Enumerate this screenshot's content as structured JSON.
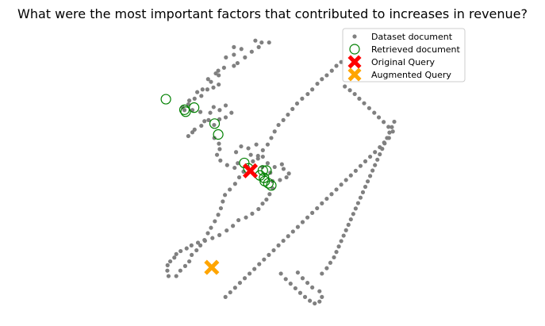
{
  "chart_data": {
    "type": "scatter",
    "title": "What were the most important factors that contributed to increases in revenue?",
    "xlim": [
      0,
      1
    ],
    "ylim": [
      0,
      1
    ],
    "grid": false,
    "axes_visible": false,
    "legend_position": "top-right",
    "legend": [
      {
        "label": "Dataset document",
        "marker": "dot",
        "color": "#808080"
      },
      {
        "label": "Retrieved document",
        "marker": "hollow-circle",
        "color": "#008000"
      },
      {
        "label": "Original Query",
        "marker": "x",
        "color": "#ff0000"
      },
      {
        "label": "Augmented Query",
        "marker": "x",
        "color": "#ffa500"
      }
    ],
    "series": [
      {
        "name": "Dataset document",
        "color": "#808080",
        "points": [
          [
            0.424,
            0.979
          ],
          [
            0.45,
            0.972
          ],
          [
            0.481,
            0.972
          ],
          [
            0.438,
            0.955
          ],
          [
            0.335,
            0.955
          ],
          [
            0.366,
            0.948
          ],
          [
            0.409,
            0.938
          ],
          [
            0.335,
            0.927
          ],
          [
            0.302,
            0.917
          ],
          [
            0.381,
            0.917
          ],
          [
            0.35,
            0.896
          ],
          [
            0.335,
            0.886
          ],
          [
            0.294,
            0.879
          ],
          [
            0.27,
            0.868
          ],
          [
            0.26,
            0.858
          ],
          [
            0.272,
            0.851
          ],
          [
            0.228,
            0.837
          ],
          [
            0.24,
            0.827
          ],
          [
            0.272,
            0.817
          ],
          [
            0.25,
            0.806
          ],
          [
            0.225,
            0.799
          ],
          [
            0.205,
            0.799
          ],
          [
            0.183,
            0.789
          ],
          [
            0.2,
            0.775
          ],
          [
            0.172,
            0.765
          ],
          [
            0.15,
            0.758
          ],
          [
            0.146,
            0.744
          ],
          [
            0.122,
            0.734
          ],
          [
            0.13,
            0.723
          ],
          [
            0.163,
            0.723
          ],
          [
            0.196,
            0.716
          ],
          [
            0.237,
            0.713
          ],
          [
            0.251,
            0.734
          ],
          [
            0.276,
            0.723
          ],
          [
            0.301,
            0.74
          ],
          [
            0.325,
            0.713
          ],
          [
            0.301,
            0.696
          ],
          [
            0.275,
            0.689
          ],
          [
            0.253,
            0.668
          ],
          [
            0.23,
            0.686
          ],
          [
            0.213,
            0.682
          ],
          [
            0.2,
            0.665
          ],
          [
            0.172,
            0.651
          ],
          [
            0.163,
            0.641
          ],
          [
            0.146,
            0.627
          ],
          [
            0.254,
            0.62
          ],
          [
            0.273,
            0.599
          ],
          [
            0.276,
            0.579
          ],
          [
            0.265,
            0.558
          ],
          [
            0.279,
            0.537
          ],
          [
            0.307,
            0.52
          ],
          [
            0.338,
            0.51
          ],
          [
            0.351,
            0.527
          ],
          [
            0.344,
            0.568
          ],
          [
            0.365,
            0.589
          ],
          [
            0.395,
            0.582
          ],
          [
            0.405,
            0.558
          ],
          [
            0.428,
            0.596
          ],
          [
            0.435,
            0.544
          ],
          [
            0.455,
            0.551
          ],
          [
            0.475,
            0.527
          ],
          [
            0.453,
            0.513
          ],
          [
            0.486,
            0.492
          ],
          [
            0.504,
            0.513
          ],
          [
            0.534,
            0.523
          ],
          [
            0.541,
            0.506
          ],
          [
            0.563,
            0.489
          ],
          [
            0.553,
            0.475
          ],
          [
            0.526,
            0.465
          ],
          [
            0.495,
            0.461
          ],
          [
            0.496,
            0.434
          ],
          [
            0.483,
            0.413
          ],
          [
            0.47,
            0.393
          ],
          [
            0.454,
            0.378
          ],
          [
            0.437,
            0.358
          ],
          [
            0.411,
            0.341
          ],
          [
            0.385,
            0.327
          ],
          [
            0.354,
            0.317
          ],
          [
            0.331,
            0.296
          ],
          [
            0.305,
            0.279
          ],
          [
            0.275,
            0.262
          ],
          [
            0.246,
            0.251
          ],
          [
            0.215,
            0.241
          ],
          [
            0.186,
            0.234
          ],
          [
            0.159,
            0.224
          ],
          [
            0.139,
            0.213
          ],
          [
            0.114,
            0.203
          ],
          [
            0.096,
            0.192
          ],
          [
            0.088,
            0.179
          ],
          [
            0.071,
            0.165
          ],
          [
            0.06,
            0.151
          ],
          [
            0.059,
            0.131
          ],
          [
            0.064,
            0.111
          ],
          [
            0.096,
            0.111
          ],
          [
            0.113,
            0.131
          ],
          [
            0.133,
            0.148
          ],
          [
            0.15,
            0.165
          ],
          [
            0.16,
            0.189
          ],
          [
            0.18,
            0.206
          ],
          [
            0.196,
            0.224
          ],
          [
            0.213,
            0.244
          ],
          [
            0.227,
            0.269
          ],
          [
            0.24,
            0.289
          ],
          [
            0.256,
            0.313
          ],
          [
            0.27,
            0.337
          ],
          [
            0.281,
            0.361
          ],
          [
            0.289,
            0.386
          ],
          [
            0.298,
            0.41
          ],
          [
            0.318,
            0.43
          ],
          [
            0.34,
            0.451
          ],
          [
            0.357,
            0.475
          ],
          [
            0.375,
            0.496
          ],
          [
            0.393,
            0.513
          ],
          [
            0.414,
            0.534
          ],
          [
            0.435,
            0.554
          ],
          [
            0.455,
            0.575
          ],
          [
            0.475,
            0.596
          ],
          [
            0.49,
            0.62
          ],
          [
            0.504,
            0.644
          ],
          [
            0.52,
            0.668
          ],
          [
            0.54,
            0.686
          ],
          [
            0.559,
            0.706
          ],
          [
            0.578,
            0.727
          ],
          [
            0.597,
            0.747
          ],
          [
            0.618,
            0.765
          ],
          [
            0.641,
            0.782
          ],
          [
            0.66,
            0.799
          ],
          [
            0.681,
            0.82
          ],
          [
            0.7,
            0.837
          ],
          [
            0.72,
            0.851
          ],
          [
            0.741,
            0.868
          ],
          [
            0.76,
            0.886
          ],
          [
            0.78,
            0.9
          ],
          [
            0.8,
            0.917
          ],
          [
            0.82,
            0.93
          ],
          [
            0.838,
            0.941
          ],
          [
            0.795,
            0.81
          ],
          [
            0.816,
            0.796
          ],
          [
            0.836,
            0.782
          ],
          [
            0.855,
            0.765
          ],
          [
            0.875,
            0.748
          ],
          [
            0.896,
            0.73
          ],
          [
            0.917,
            0.713
          ],
          [
            0.936,
            0.696
          ],
          [
            0.956,
            0.679
          ],
          [
            0.976,
            0.661
          ],
          [
            0.994,
            0.644
          ],
          [
            0.978,
            0.62
          ],
          [
            0.958,
            0.603
          ],
          [
            0.94,
            0.586
          ],
          [
            0.92,
            0.568
          ],
          [
            0.9,
            0.551
          ],
          [
            0.88,
            0.534
          ],
          [
            0.86,
            0.517
          ],
          [
            0.84,
            0.499
          ],
          [
            0.82,
            0.482
          ],
          [
            0.8,
            0.465
          ],
          [
            0.78,
            0.448
          ],
          [
            0.76,
            0.43
          ],
          [
            0.74,
            0.413
          ],
          [
            0.72,
            0.396
          ],
          [
            0.7,
            0.379
          ],
          [
            0.68,
            0.361
          ],
          [
            0.66,
            0.344
          ],
          [
            0.64,
            0.327
          ],
          [
            0.62,
            0.31
          ],
          [
            0.6,
            0.292
          ],
          [
            0.58,
            0.275
          ],
          [
            0.56,
            0.258
          ],
          [
            0.54,
            0.241
          ],
          [
            0.52,
            0.224
          ],
          [
            0.5,
            0.206
          ],
          [
            0.48,
            0.189
          ],
          [
            0.46,
            0.172
          ],
          [
            0.44,
            0.155
          ],
          [
            0.42,
            0.137
          ],
          [
            0.4,
            0.12
          ],
          [
            0.38,
            0.103
          ],
          [
            0.36,
            0.086
          ],
          [
            0.34,
            0.068
          ],
          [
            0.32,
            0.051
          ],
          [
            0.3,
            0.034
          ],
          [
            0.53,
            0.12
          ],
          [
            0.55,
            0.1
          ],
          [
            0.57,
            0.083
          ],
          [
            0.59,
            0.066
          ],
          [
            0.61,
            0.049
          ],
          [
            0.63,
            0.034
          ],
          [
            0.65,
            0.02
          ],
          [
            0.67,
            0.01
          ],
          [
            0.69,
            0.017
          ],
          [
            0.7,
            0.034
          ],
          [
            0.69,
            0.055
          ],
          [
            0.66,
            0.069
          ],
          [
            0.64,
            0.086
          ],
          [
            0.62,
            0.103
          ],
          [
            0.6,
            0.124
          ],
          [
            0.7,
            0.12
          ],
          [
            0.72,
            0.14
          ],
          [
            0.735,
            0.16
          ],
          [
            0.75,
            0.18
          ],
          [
            0.76,
            0.2
          ],
          [
            0.77,
            0.22
          ],
          [
            0.78,
            0.24
          ],
          [
            0.79,
            0.26
          ],
          [
            0.8,
            0.28
          ],
          [
            0.81,
            0.3
          ],
          [
            0.82,
            0.32
          ],
          [
            0.83,
            0.34
          ],
          [
            0.84,
            0.36
          ],
          [
            0.85,
            0.38
          ],
          [
            0.86,
            0.4
          ],
          [
            0.87,
            0.42
          ],
          [
            0.88,
            0.44
          ],
          [
            0.89,
            0.46
          ],
          [
            0.9,
            0.48
          ],
          [
            0.91,
            0.5
          ],
          [
            0.92,
            0.52
          ],
          [
            0.93,
            0.54
          ],
          [
            0.94,
            0.56
          ],
          [
            0.95,
            0.58
          ],
          [
            0.96,
            0.6
          ],
          [
            0.97,
            0.62
          ],
          [
            0.98,
            0.64
          ],
          [
            0.99,
            0.66
          ],
          [
            1.0,
            0.68
          ]
        ]
      },
      {
        "name": "Retrieved document",
        "color": "#008000",
        "points": [
          [
            0.053,
            0.763
          ],
          [
            0.13,
            0.724
          ],
          [
            0.135,
            0.717
          ],
          [
            0.17,
            0.732
          ],
          [
            0.255,
            0.673
          ],
          [
            0.27,
            0.633
          ],
          [
            0.378,
            0.528
          ],
          [
            0.395,
            0.508
          ],
          [
            0.443,
            0.482
          ],
          [
            0.46,
            0.473
          ],
          [
            0.463,
            0.461
          ],
          [
            0.478,
            0.453
          ],
          [
            0.49,
            0.445
          ],
          [
            0.455,
            0.5
          ],
          [
            0.47,
            0.5
          ]
        ]
      },
      {
        "name": "Original Query",
        "color": "#ff0000",
        "points": [
          [
            0.403,
            0.499
          ]
        ]
      },
      {
        "name": "Augmented Query",
        "color": "#ffa500",
        "points": [
          [
            0.243,
            0.143
          ]
        ]
      }
    ]
  }
}
